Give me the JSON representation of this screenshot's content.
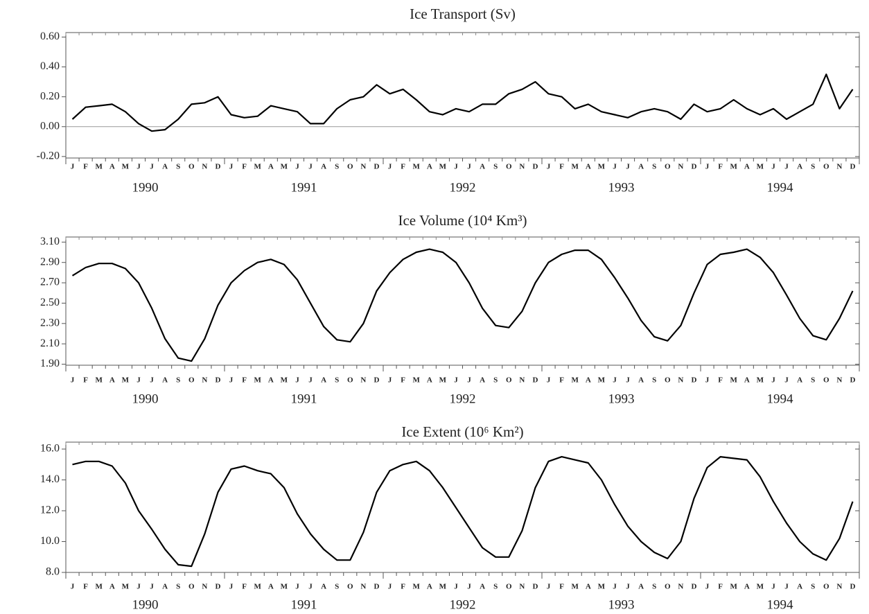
{
  "chart_data": [
    {
      "type": "line",
      "title": "Ice Transport (Sv)",
      "categories": [
        "J",
        "F",
        "M",
        "A",
        "M",
        "J",
        "J",
        "A",
        "S",
        "O",
        "N",
        "D",
        "J",
        "F",
        "M",
        "A",
        "M",
        "J",
        "J",
        "A",
        "S",
        "O",
        "N",
        "D",
        "J",
        "F",
        "M",
        "A",
        "M",
        "J",
        "J",
        "A",
        "S",
        "O",
        "N",
        "D",
        "J",
        "F",
        "M",
        "A",
        "M",
        "J",
        "J",
        "A",
        "S",
        "O",
        "N",
        "D",
        "J",
        "F",
        "M",
        "A",
        "M",
        "J",
        "J",
        "A",
        "S",
        "O",
        "N",
        "D"
      ],
      "year_labels": [
        "1990",
        "1991",
        "1992",
        "1993",
        "1994"
      ],
      "values": [
        0.05,
        0.13,
        0.14,
        0.15,
        0.1,
        0.02,
        -0.03,
        -0.02,
        0.05,
        0.15,
        0.16,
        0.2,
        0.08,
        0.06,
        0.07,
        0.14,
        0.12,
        0.1,
        0.02,
        0.02,
        0.12,
        0.18,
        0.2,
        0.28,
        0.22,
        0.25,
        0.18,
        0.1,
        0.08,
        0.12,
        0.1,
        0.15,
        0.15,
        0.22,
        0.25,
        0.3,
        0.22,
        0.2,
        0.12,
        0.15,
        0.1,
        0.08,
        0.06,
        0.1,
        0.12,
        0.1,
        0.05,
        0.15,
        0.1,
        0.12,
        0.18,
        0.12,
        0.08,
        0.12,
        0.05,
        0.1,
        0.15,
        0.35,
        0.12,
        0.25
      ],
      "color": "#000000",
      "zero_line": true,
      "ylim": [
        -0.21,
        0.63
      ],
      "yticks": [
        {
          "value": -0.2,
          "label": "-0.20"
        },
        {
          "value": 0,
          "label": "0.00"
        },
        {
          "value": 0.2,
          "label": "0.20"
        },
        {
          "value": 0.4,
          "label": "0.40"
        },
        {
          "value": 0.6,
          "label": "0.60"
        }
      ]
    },
    {
      "type": "line",
      "title": "Ice Volume (10⁴ Km³)",
      "categories": [
        "J",
        "F",
        "M",
        "A",
        "M",
        "J",
        "J",
        "A",
        "S",
        "O",
        "N",
        "D",
        "J",
        "F",
        "M",
        "A",
        "M",
        "J",
        "J",
        "A",
        "S",
        "O",
        "N",
        "D",
        "J",
        "F",
        "M",
        "A",
        "M",
        "J",
        "J",
        "A",
        "S",
        "O",
        "N",
        "D",
        "J",
        "F",
        "M",
        "A",
        "M",
        "J",
        "J",
        "A",
        "S",
        "O",
        "N",
        "D",
        "J",
        "F",
        "M",
        "A",
        "M",
        "J",
        "J",
        "A",
        "S",
        "O",
        "N",
        "D"
      ],
      "year_labels": [
        "1990",
        "1991",
        "1992",
        "1993",
        "1994"
      ],
      "values": [
        2.77,
        2.85,
        2.89,
        2.89,
        2.84,
        2.7,
        2.45,
        2.15,
        1.96,
        1.93,
        2.15,
        2.48,
        2.7,
        2.82,
        2.9,
        2.93,
        2.88,
        2.73,
        2.5,
        2.27,
        2.14,
        2.12,
        2.3,
        2.62,
        2.8,
        2.93,
        3.0,
        3.03,
        3.0,
        2.9,
        2.7,
        2.45,
        2.28,
        2.26,
        2.42,
        2.7,
        2.9,
        2.98,
        3.02,
        3.02,
        2.93,
        2.75,
        2.55,
        2.33,
        2.17,
        2.13,
        2.28,
        2.6,
        2.88,
        2.98,
        3.0,
        3.03,
        2.95,
        2.8,
        2.58,
        2.35,
        2.18,
        2.14,
        2.35,
        2.62
      ],
      "color": "#000000",
      "ylim": [
        1.89,
        3.15
      ],
      "yticks": [
        {
          "value": 1.9,
          "label": "1.90"
        },
        {
          "value": 2.1,
          "label": "2.10"
        },
        {
          "value": 2.3,
          "label": "2.30"
        },
        {
          "value": 2.5,
          "label": "2.50"
        },
        {
          "value": 2.7,
          "label": "2.70"
        },
        {
          "value": 2.9,
          "label": "2.90"
        },
        {
          "value": 3.1,
          "label": "3.10"
        }
      ]
    },
    {
      "type": "line",
      "title": "Ice Extent (10⁶ Km²)",
      "categories": [
        "J",
        "F",
        "M",
        "A",
        "M",
        "J",
        "J",
        "A",
        "S",
        "O",
        "N",
        "D",
        "J",
        "F",
        "M",
        "A",
        "M",
        "J",
        "J",
        "A",
        "S",
        "O",
        "N",
        "D",
        "J",
        "F",
        "M",
        "A",
        "M",
        "J",
        "J",
        "A",
        "S",
        "O",
        "N",
        "D",
        "J",
        "F",
        "M",
        "A",
        "M",
        "J",
        "J",
        "A",
        "S",
        "O",
        "N",
        "D",
        "J",
        "F",
        "M",
        "A",
        "M",
        "J",
        "J",
        "A",
        "S",
        "O",
        "N",
        "D"
      ],
      "year_labels": [
        "1990",
        "1991",
        "1992",
        "1993",
        "1994"
      ],
      "values": [
        15.0,
        15.2,
        15.2,
        14.9,
        13.8,
        12.0,
        10.8,
        9.5,
        8.5,
        8.4,
        10.5,
        13.2,
        14.7,
        14.9,
        14.6,
        14.4,
        13.5,
        11.8,
        10.5,
        9.5,
        8.8,
        8.8,
        10.6,
        13.2,
        14.6,
        15.0,
        15.2,
        14.6,
        13.5,
        12.2,
        10.9,
        9.6,
        9.0,
        9.0,
        10.7,
        13.5,
        15.2,
        15.5,
        15.3,
        15.1,
        14.0,
        12.4,
        11.0,
        10.0,
        9.3,
        8.9,
        10.0,
        12.8,
        14.8,
        15.5,
        15.4,
        15.3,
        14.2,
        12.6,
        11.2,
        10.0,
        9.2,
        8.8,
        10.2,
        12.6
      ],
      "color": "#000000",
      "ylim": [
        8.0,
        16.45
      ],
      "yticks": [
        {
          "value": 8,
          "label": "8.0"
        },
        {
          "value": 10,
          "label": "10.0"
        },
        {
          "value": 12,
          "label": "12.0"
        },
        {
          "value": 14,
          "label": "14.0"
        },
        {
          "value": 16,
          "label": "16.0"
        }
      ]
    }
  ]
}
